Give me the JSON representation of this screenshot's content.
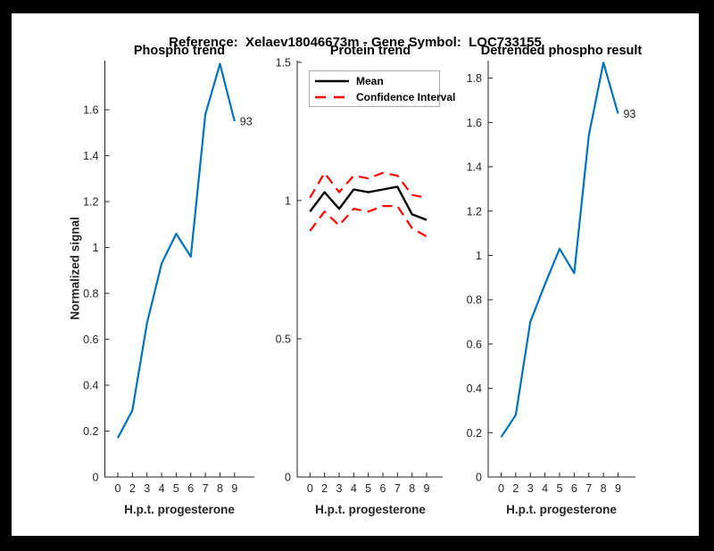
{
  "figure": {
    "title": "Reference:  Xelaev18046673m - Gene Symbol:  LOC733155"
  },
  "colors": {
    "axis": "#262626",
    "blue": "#0072BD",
    "red": "#FF0000",
    "black": "#000000",
    "legend_border": "#ababab"
  },
  "chart_data": [
    {
      "id": "phospho-trend",
      "type": "line",
      "title": "Phospho trend",
      "xlabel": "H.p.t. progesterone",
      "ylabel": "Normalized signal",
      "x_ticklabels": [
        "0",
        "2",
        "3",
        "4",
        "5",
        "6",
        "7",
        "8",
        "9"
      ],
      "y_ticks": [
        0,
        0.2,
        0.4,
        0.6,
        0.8,
        1,
        1.2,
        1.4,
        1.6
      ],
      "ylim": [
        0,
        1.814
      ],
      "grid": false,
      "series": [
        {
          "name": "phospho-trend-line",
          "color": "#0072BD",
          "style": "solid",
          "values": [
            0.17,
            0.29,
            0.67,
            0.93,
            1.06,
            0.96,
            1.58,
            1.8,
            1.55
          ]
        }
      ],
      "end_label": "93"
    },
    {
      "id": "protein-trend",
      "type": "line",
      "title": "Protein trend",
      "xlabel": "H.p.t. progesterone",
      "ylabel": "",
      "x_ticklabels": [
        "0",
        "2",
        "3",
        "4",
        "5",
        "6",
        "7",
        "8",
        "9"
      ],
      "y_ticks": [
        0,
        0.5,
        1,
        1.5
      ],
      "ylim": [
        0,
        1.506
      ],
      "grid": false,
      "series": [
        {
          "name": "confidence-interval-upper-line",
          "color": "#FF0000",
          "style": "dashed",
          "values": [
            1.01,
            1.1,
            1.03,
            1.09,
            1.08,
            1.1,
            1.09,
            1.02,
            1.01
          ]
        },
        {
          "name": "confidence-interval-lower-line",
          "color": "#FF0000",
          "style": "dashed",
          "values": [
            0.89,
            0.96,
            0.91,
            0.97,
            0.96,
            0.98,
            0.98,
            0.9,
            0.87
          ]
        },
        {
          "name": "mean-line",
          "color": "#000000",
          "style": "solid",
          "values": [
            0.96,
            1.03,
            0.97,
            1.04,
            1.03,
            1.04,
            1.05,
            0.95,
            0.93
          ]
        }
      ],
      "legend": {
        "position": "top-left",
        "entries": [
          {
            "label": "Mean",
            "color": "#000000",
            "style": "solid"
          },
          {
            "label": "Confidence Interval",
            "color": "#FF0000",
            "style": "dashed"
          }
        ]
      }
    },
    {
      "id": "detrended-phospho",
      "type": "line",
      "title": "Detrended phospho result",
      "xlabel": "H.p.t. progesterone",
      "ylabel": "",
      "x_ticklabels": [
        "0",
        "2",
        "3",
        "4",
        "5",
        "6",
        "7",
        "8",
        "9"
      ],
      "y_ticks": [
        0,
        0.2,
        0.4,
        0.6,
        0.8,
        1,
        1.2,
        1.4,
        1.6,
        1.8
      ],
      "ylim": [
        0,
        1.879
      ],
      "grid": false,
      "series": [
        {
          "name": "detrended-phospho-line",
          "color": "#0072BD",
          "style": "solid",
          "values": [
            0.18,
            0.28,
            0.7,
            0.87,
            1.03,
            0.92,
            1.54,
            1.87,
            1.64
          ]
        }
      ],
      "end_label": "93"
    }
  ]
}
